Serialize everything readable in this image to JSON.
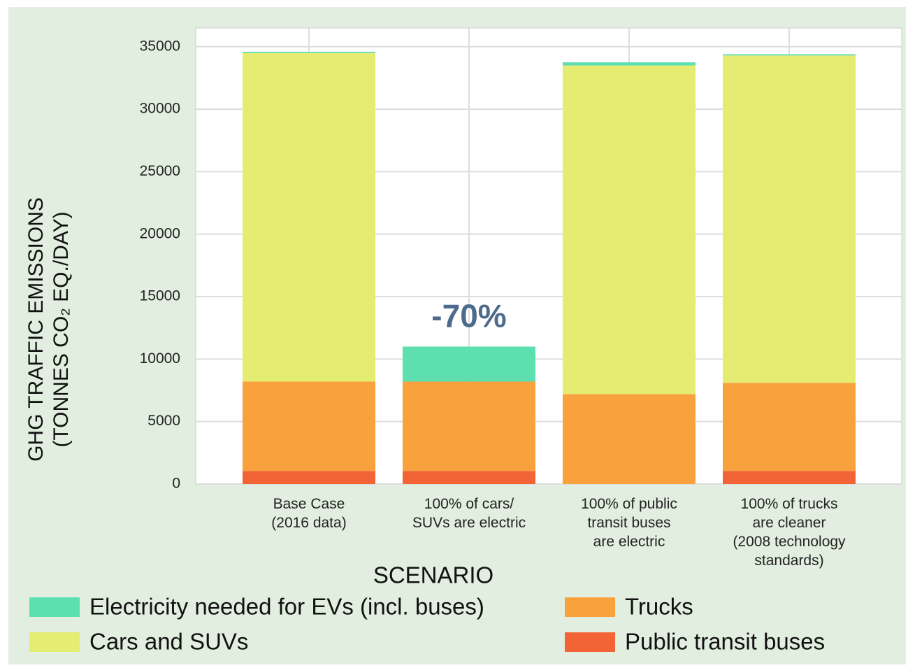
{
  "chart_data": {
    "type": "stacked-bar",
    "ylabel": "GHG TRAFFIC EMISSIONS\n(TONNES CO₂ EQ./DAY)",
    "xlabel": "SCENARIO",
    "annotation": {
      "text": "-70%",
      "category": 1
    },
    "categories": [
      "Base Case\n(2016 data)",
      "100% of cars/\nSUVs are electric",
      "100% of public\ntransit buses\nare electric",
      "100% of trucks\nare cleaner\n(2008 technology\nstandards)"
    ],
    "series": [
      {
        "name": "Public transit buses",
        "color": "#f26336",
        "values": [
          1050,
          1050,
          0,
          1050
        ]
      },
      {
        "name": "Trucks",
        "color": "#f9a13d",
        "values": [
          7150,
          7150,
          7200,
          7050
        ]
      },
      {
        "name": "Cars and SUVs",
        "color": "#e5ec72",
        "values": [
          26300,
          0,
          26300,
          26200
        ]
      },
      {
        "name": "Electricity needed for EVs (incl. buses)",
        "color": "#5ddfb0",
        "values": [
          100,
          2800,
          250,
          100
        ]
      }
    ],
    "ylim": [
      0,
      36500
    ],
    "yticks": [
      0,
      5000,
      10000,
      15000,
      20000,
      25000,
      30000,
      35000
    ],
    "grid": true
  }
}
